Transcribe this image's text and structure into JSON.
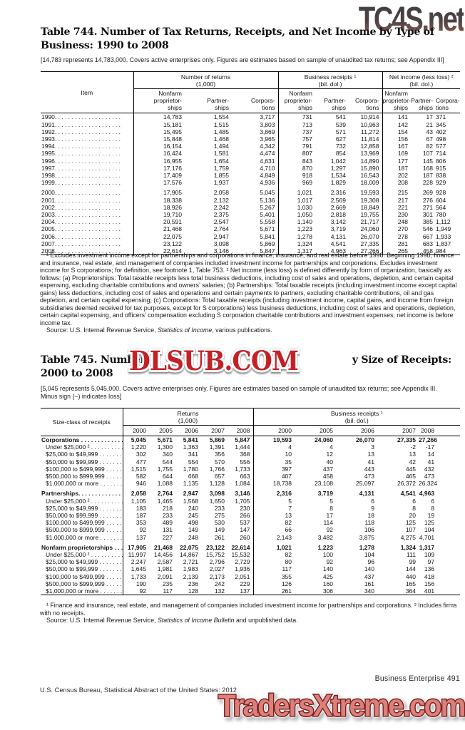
{
  "watermarks": {
    "top": "TC4S.net",
    "middle": "DLSUB.COM",
    "bottom": "TradersXtreme.com"
  },
  "table744": {
    "title_line1": "Table 744. Number of Tax Returns, Receipts, and Net Income by Type of",
    "title_line2": "Business: 1990 to 2008",
    "note": "[14,783 represents 14,783,000. Covers active enterprises only. Figures are estimates based on sample of unaudited tax returns; see Appendix III]",
    "item_header": "Item",
    "groups": [
      {
        "label": "Number of returns",
        "sub": "(1,000)"
      },
      {
        "label": "Business receipts ¹",
        "sub": "(bil. dol.)"
      },
      {
        "label": "Net income (less loss) ²",
        "sub": "(bil. dol.)"
      }
    ],
    "col_headers": [
      "Nonfarm\nproprietor-\nships",
      "Partner-\nships",
      "Corpora-\ntions",
      "Nonfarm\nproprietor-\nships",
      "Partner-\nships",
      "Corpora-\ntions",
      "Nonfarm\nproprietor-\nships",
      "Partner-\nships",
      "Corpora-\ntions"
    ],
    "rows": [
      {
        "label": "1990. . . . . . . . . . . . . . . . . . . .",
        "values": [
          "14,783",
          "1,554",
          "3,717",
          "731",
          "541",
          "10,914",
          "141",
          "17",
          "371"
        ]
      },
      {
        "label": "1991. . . . . . . . . . . . . . . . . . . .",
        "values": [
          "15,181",
          "1,515",
          "3,803",
          "713",
          "539",
          "10,963",
          "142",
          "21",
          "345"
        ]
      },
      {
        "label": "1992. . . . . . . . . . . . . . . . . . . .",
        "values": [
          "15,495",
          "1,485",
          "3,869",
          "737",
          "571",
          "11,272",
          "154",
          "43",
          "402"
        ]
      },
      {
        "label": "1993. . . . . . . . . . . . . . . . . . . .",
        "values": [
          "15,848",
          "1,468",
          "3,965",
          "757",
          "627",
          "11,814",
          "156",
          "67",
          "498"
        ]
      },
      {
        "label": "1994. . . . . . . . . . . . . . . . . . . .",
        "values": [
          "16,154",
          "1,494",
          "4,342",
          "791",
          "732",
          "12,858",
          "167",
          "82",
          "577"
        ]
      },
      {
        "label": "1995. . . . . . . . . . . . . . . . . . . .",
        "values": [
          "16,424",
          "1,581",
          "4,474",
          "807",
          "854",
          "13,969",
          "169",
          "107",
          "714"
        ]
      },
      {
        "label": "1996. . . . . . . . . . . . . . . . . . . .",
        "values": [
          "16,955",
          "1,654",
          "4,631",
          "843",
          "1,042",
          "14,890",
          "177",
          "145",
          "806"
        ]
      },
      {
        "label": "1997. . . . . . . . . . . . . . . . . . . .",
        "values": [
          "17,176",
          "1,759",
          "4,710",
          "870",
          "1,297",
          "15,890",
          "187",
          "168",
          "915"
        ]
      },
      {
        "label": "1998. . . . . . . . . . . . . . . . . . . .",
        "values": [
          "17,409",
          "1,855",
          "4,849",
          "918",
          "1,534",
          "16,543",
          "202",
          "187",
          "838"
        ]
      },
      {
        "label": "1999. . . . . . . . . . . . . . . . . . . .",
        "values": [
          "17,576",
          "1,937",
          "4,936",
          "969",
          "1,829",
          "18,009",
          "208",
          "228",
          "929"
        ]
      },
      {
        "label": "2000. . . . . . . . . . . . . . . . . . . .",
        "gap": true,
        "values": [
          "17,905",
          "2,058",
          "5,045",
          "1,021",
          "2,316",
          "19,593",
          "215",
          "269",
          "928"
        ]
      },
      {
        "label": "2001. . . . . . . . . . . . . . . . . . . .",
        "values": [
          "18,338",
          "2,132",
          "5,136",
          "1,017",
          "2,569",
          "19,308",
          "217",
          "276",
          "604"
        ]
      },
      {
        "label": "2002. . . . . . . . . . . . . . . . . . . .",
        "values": [
          "18,926",
          "2,242",
          "5,267",
          "1,030",
          "2,669",
          "18,849",
          "221",
          "271",
          "564"
        ]
      },
      {
        "label": "2003. . . . . . . . . . . . . . . . . . . .",
        "values": [
          "19,710",
          "2,375",
          "5,401",
          "1,050",
          "2,818",
          "19,755",
          "230",
          "301",
          "780"
        ]
      },
      {
        "label": "2004. . . . . . . . . . . . . . . . . . . .",
        "values": [
          "20,591",
          "2,547",
          "5,558",
          "1,140",
          "3,142",
          "21,717",
          "248",
          "385",
          "1,112"
        ]
      },
      {
        "label": "2005. . . . . . . . . . . . . . . . . . . .",
        "values": [
          "21,468",
          "2,764",
          "5,671",
          "1,223",
          "3,719",
          "24,060",
          "270",
          "546",
          "1,949"
        ]
      },
      {
        "label": "2006. . . . . . . . . . . . . . . . . . . .",
        "values": [
          "22,075",
          "2,947",
          "5,841",
          "1,278",
          "4,131",
          "26,070",
          "278",
          "667",
          "1,933"
        ]
      },
      {
        "label": "2007. . . . . . . . . . . . . . . . . . . .",
        "values": [
          "23,122",
          "3,098",
          "5,869",
          "1,324",
          "4,541",
          "27,335",
          "281",
          "683",
          "1,837"
        ]
      },
      {
        "label": "2008. . . . . . . . . . . . . . . . . . . .",
        "values": [
          "22,614",
          "3,146",
          "5,847",
          "1,317",
          "4,963",
          "27,266",
          "265",
          "458",
          "984"
        ]
      }
    ],
    "footnote": "¹ Excludes investment income except for partnerships and corporations in finance, insurance, and real estate before 1998. Beginning 1998, finance and insurance, real estate, and management of companies included investment income for partnerships and corporations. Excludes investment income for S corporations; for definition, see footnote 1, Table 753. ² Net income (less loss) is defined differently by form of organization, basically as follows: (a) Proprietorships: Total taxable receipts less total business deductions, including cost of sales and operations, depletion, and certain capital expensing, excluding charitable contributions and owners’ salaries; (b) Partnerships: Total taxable receipts (including investment income except capital gains) less deductions, including cost of sales and operations and certain payments to partners, excluding charitable contributions, oil and gas depletion, and certain capital expensing; (c) Corporations: Total taxable receipts (including investment income, capital gains, and income from foreign subsidiaries deemed received for tax purposes, except for S corporations) less business deductions, including cost of sales and operations, depletion, certain capital expensing, and officers’ compensation excluding S corporation charitable contributions and investment expenses; net income is before income tax.",
    "source_prefix": "Source: U.S. Internal Revenue Service, ",
    "source_italic": "Statistics of Income",
    "source_suffix": ", various publications."
  },
  "table745": {
    "title_left": "Table 745. Number",
    "title_right": "y Size of Receipts:",
    "title_line2": "2000 to 2008",
    "note": "[5,045 represents 5,045,000. Covers active enterprises only. Figures are estimates based on sample of unaudited tax returns; see Appendix III. Minus sign (−) indicates loss]",
    "stub_header": "Size-class of receipts",
    "groups": [
      {
        "label": "Returns",
        "sub": "(1,000)"
      },
      {
        "label": "Business receipts ¹",
        "sub": "(bil. dol.)"
      }
    ],
    "years": [
      "2000",
      "2005",
      "2006",
      "2007",
      "2008",
      "2000",
      "2005",
      "2006",
      "2007",
      "2008"
    ],
    "rows": [
      {
        "label": "Corporations . . . . . . . . . . . . . . . . . .",
        "bold": true,
        "values": [
          "5,045",
          "5,671",
          "5,841",
          "5,869",
          "5,847",
          "19,593",
          "24,060",
          "26,070",
          "27,335",
          "27,266"
        ]
      },
      {
        "label": "Under $25,000 ² . . . . . . . . . . . . .",
        "indent": true,
        "values": [
          "1,220",
          "1,300",
          "1,363",
          "1,391",
          "1,444",
          "4",
          "4",
          "3",
          "-2",
          "-17"
        ]
      },
      {
        "label": "$25,000 to $49,999 . . . . . . . . . . .",
        "indent": true,
        "values": [
          "302",
          "340",
          "341",
          "356",
          "368",
          "10",
          "12",
          "13",
          "13",
          "14"
        ]
      },
      {
        "label": "$50,000 to $99,999 . . . . . . . . . . .",
        "indent": true,
        "values": [
          "477",
          "544",
          "554",
          "570",
          "556",
          "35",
          "40",
          "41",
          "42",
          "41"
        ]
      },
      {
        "label": "$100,000 to $499,999 . . . . . . . . .",
        "indent": true,
        "values": [
          "1,515",
          "1,755",
          "1,780",
          "1,766",
          "1,733",
          "397",
          "437",
          "443",
          "445",
          "432"
        ]
      },
      {
        "label": "$500,000 to $999,999 . . . . . . . . .",
        "indent": true,
        "values": [
          "582",
          "644",
          "668",
          "657",
          "663",
          "407",
          "458",
          "473",
          "465",
          "473"
        ]
      },
      {
        "label": "$1,000,000 or more . . . . . . . . . . .",
        "indent": true,
        "values": [
          "946",
          "1,088",
          "1,135",
          "1,128",
          "1,084",
          "18,738",
          "23,108",
          "25,097",
          "26,372",
          "26,324"
        ]
      },
      {
        "label": "Partnerships. . . . . . . . . . . . . . . . . .",
        "bold": true,
        "gap": true,
        "values": [
          "2,058",
          "2,764",
          "2,947",
          "3,098",
          "3,146",
          "2,316",
          "3,719",
          "4,131",
          "4,541",
          "4,963"
        ]
      },
      {
        "label": "Under $25,000 ² . . . . . . . . . . . . .",
        "indent": true,
        "values": [
          "1,105",
          "1,465",
          "1,568",
          "1,650",
          "1,705",
          "5",
          "5",
          "6",
          "6",
          "6"
        ]
      },
      {
        "label": "$25,000 to $49,999 . . . . . . . . . . .",
        "indent": true,
        "values": [
          "183",
          "218",
          "240",
          "233",
          "230",
          "7",
          "8",
          "9",
          "8",
          "8"
        ]
      },
      {
        "label": "$50,000 to $99,999 . . . . . . . . . . .",
        "indent": true,
        "values": [
          "187",
          "233",
          "245",
          "275",
          "266",
          "13",
          "17",
          "18",
          "20",
          "19"
        ]
      },
      {
        "label": "$100,000 to $499,999 . . . . . . . . .",
        "indent": true,
        "values": [
          "353",
          "489",
          "498",
          "530",
          "537",
          "82",
          "114",
          "118",
          "125",
          "125"
        ]
      },
      {
        "label": "$500,000 to $999,999 . . . . . . . . .",
        "indent": true,
        "values": [
          "92",
          "131",
          "149",
          "149",
          "147",
          "66",
          "92",
          "106",
          "107",
          "104"
        ]
      },
      {
        "label": "$1,000,000 or more . . . . . . . . . . .",
        "indent": true,
        "values": [
          "137",
          "227",
          "248",
          "261",
          "260",
          "2,143",
          "3,482",
          "3,875",
          "4,275",
          "4,701"
        ]
      },
      {
        "label": "Nonfarm proprietorships . . . . . .",
        "bold": true,
        "gap": true,
        "values": [
          "17,905",
          "21,468",
          "22,075",
          "23,122",
          "22,614",
          "1,021",
          "1,223",
          "1,278",
          "1,324",
          "1,317"
        ]
      },
      {
        "label": "Under $25,000 ² . . . . . . . . . . . . .",
        "indent": true,
        "values": [
          "11,997",
          "14,456",
          "14,867",
          "15,752",
          "15,532",
          "82",
          "100",
          "104",
          "111",
          "109"
        ]
      },
      {
        "label": "$25,000 to $49,999 . . . . . . . . . . .",
        "indent": true,
        "values": [
          "2,247",
          "2,587",
          "2,721",
          "2,796",
          "2,729",
          "80",
          "92",
          "96",
          "99",
          "97"
        ]
      },
      {
        "label": "$50,000 to $99,999 . . . . . . . . . . .",
        "indent": true,
        "values": [
          "1,645",
          "1,981",
          "1,983",
          "2,027",
          "1,936",
          "117",
          "140",
          "140",
          "144",
          "136"
        ]
      },
      {
        "label": "$100,000 to $499,999 . . . . . . . . .",
        "indent": true,
        "values": [
          "1,733",
          "2,091",
          "2,139",
          "2,173",
          "2,051",
          "355",
          "425",
          "437",
          "440",
          "418"
        ]
      },
      {
        "label": "$500,000 to $999,999 . . . . . . . . .",
        "indent": true,
        "values": [
          "190",
          "235",
          "236",
          "242",
          "229",
          "126",
          "160",
          "161",
          "165",
          "156"
        ]
      },
      {
        "label": "$1,000,000 or more . . . . . . . . . . .",
        "indent": true,
        "values": [
          "92",
          "117",
          "128",
          "132",
          "137",
          "261",
          "306",
          "340",
          "364",
          "401"
        ]
      }
    ],
    "footnote": "¹ Finance and insurance, real estate, and management of companies included investment income for partnerships and corporations. ² Includes firms with no receipts.",
    "source_prefix": "Source: U.S. Internal Revenue Service, ",
    "source_italic": "Statistics of Income Bulletin",
    "source_suffix": " and unpublished data."
  },
  "footer": {
    "right": "Business Enterprise  491",
    "left": "U.S. Census Bureau, Statistical Abstract of the United States: 2012"
  }
}
